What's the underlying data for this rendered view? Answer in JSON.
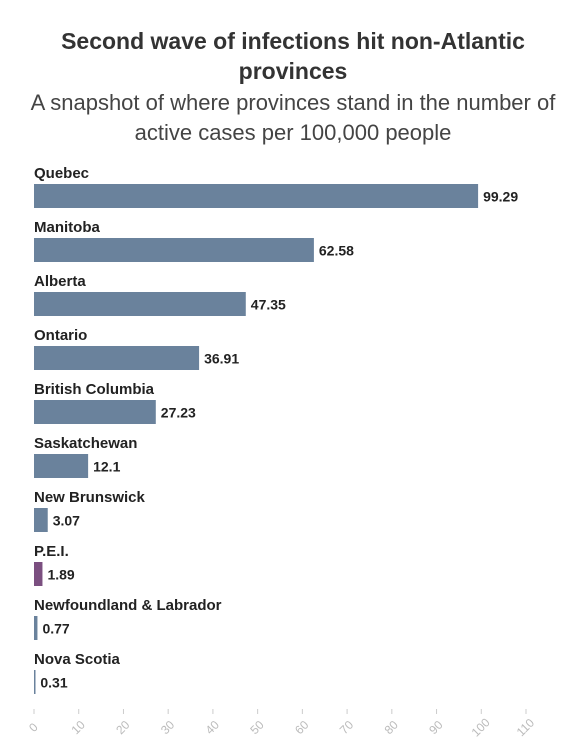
{
  "chart_data": {
    "type": "bar",
    "orientation": "horizontal",
    "title": "Second wave of infections hit non-Atlantic provinces",
    "subtitle": "A snapshot of where provinces stand in the number of active cases per 100,000 people",
    "categories": [
      "Quebec",
      "Manitoba",
      "Alberta",
      "Ontario",
      "British Columbia",
      "Saskatchewan",
      "New Brunswick",
      "P.E.I.",
      "Newfoundland & Labrador",
      "Nova Scotia"
    ],
    "values": [
      99.29,
      62.58,
      47.35,
      36.91,
      27.23,
      12.1,
      3.07,
      1.89,
      0.77,
      0.31
    ],
    "colors": [
      "#6a829c",
      "#6a829c",
      "#6a829c",
      "#6a829c",
      "#6a829c",
      "#6a829c",
      "#6a829c",
      "#7b4f80",
      "#6a829c",
      "#6a829c"
    ],
    "xlim": [
      0,
      110
    ],
    "xticks": [
      0,
      10,
      20,
      30,
      40,
      50,
      60,
      70,
      80,
      90,
      100,
      110
    ]
  }
}
